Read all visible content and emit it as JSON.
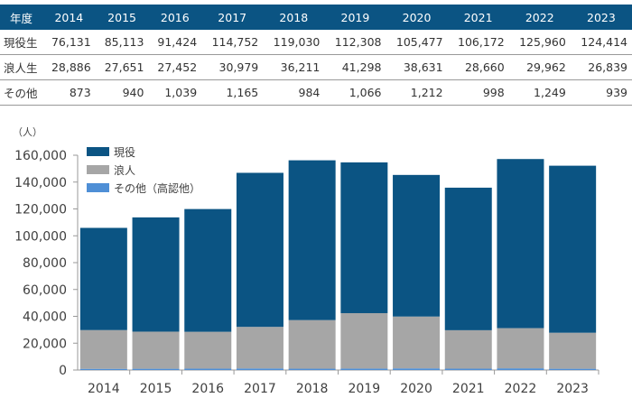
{
  "table": {
    "header": "年度",
    "years": [
      "2014",
      "2015",
      "2016",
      "2017",
      "2018",
      "2019",
      "2020",
      "2021",
      "2022",
      "2023"
    ],
    "rows": [
      {
        "label": "現役生",
        "values": [
          "76,131",
          "85,113",
          "91,424",
          "114,752",
          "119,030",
          "112,308",
          "105,477",
          "106,172",
          "125,960",
          "124,414"
        ]
      },
      {
        "label": "浪人生",
        "values": [
          "28,886",
          "27,651",
          "27,452",
          "30,979",
          "36,211",
          "41,298",
          "38,631",
          "28,660",
          "29,962",
          "26,839"
        ]
      },
      {
        "label": "その他",
        "values": [
          "873",
          "940",
          "1,039",
          "1,165",
          "984",
          "1,066",
          "1,212",
          "998",
          "1,249",
          "939"
        ]
      }
    ]
  },
  "chart_data": {
    "type": "bar",
    "stacked": true,
    "unit_label": "（人）",
    "categories": [
      "2014",
      "2015",
      "2016",
      "2017",
      "2018",
      "2019",
      "2020",
      "2021",
      "2022",
      "2023"
    ],
    "series": [
      {
        "name": "その他（高認他）",
        "color": "#4f8fd6",
        "values": [
          873,
          940,
          1039,
          1165,
          984,
          1066,
          1212,
          998,
          1249,
          939
        ]
      },
      {
        "name": "浪人",
        "color": "#a6a6a6",
        "values": [
          28886,
          27651,
          27452,
          30979,
          36211,
          41298,
          38631,
          28660,
          29962,
          26839
        ]
      },
      {
        "name": "現役",
        "color": "#0b5483",
        "values": [
          76131,
          85113,
          91424,
          114752,
          119030,
          112308,
          105477,
          106172,
          125960,
          124414
        ]
      }
    ],
    "legend_order": [
      "現役",
      "浪人",
      "その他（高認他）"
    ],
    "ylim": [
      0,
      160000
    ],
    "yticks": [
      "0",
      "20,000",
      "40,000",
      "60,000",
      "80,000",
      "100,000",
      "120,000",
      "140,000",
      "160,000"
    ],
    "grid": false,
    "legend_position": "top-left"
  }
}
